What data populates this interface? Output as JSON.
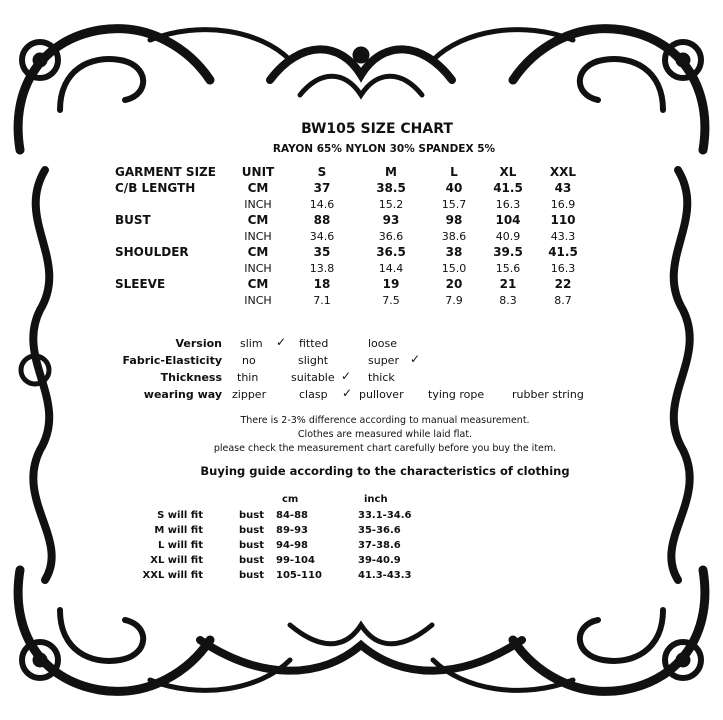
{
  "title": "BW105 SIZE CHART",
  "material": "RAYON 65% NYLON 30% SPANDEX 5%",
  "table": {
    "header": {
      "label": "GARMENT SIZE",
      "unit": "UNIT",
      "sizes": [
        "S",
        "M",
        "L",
        "XL",
        "XXL"
      ]
    },
    "rows": [
      {
        "label": "C/B LENGTH",
        "cm_unit": "CM",
        "cm": [
          "37",
          "38.5",
          "40",
          "41.5",
          "43"
        ],
        "inch_unit": "INCH",
        "inch": [
          "14.6",
          "15.2",
          "15.7",
          "16.3",
          "16.9"
        ]
      },
      {
        "label": "BUST",
        "cm_unit": "CM",
        "cm": [
          "88",
          "93",
          "98",
          "104",
          "110"
        ],
        "inch_unit": "INCH",
        "inch": [
          "34.6",
          "36.6",
          "38.6",
          "40.9",
          "43.3"
        ]
      },
      {
        "label": "SHOULDER",
        "cm_unit": "CM",
        "cm": [
          "35",
          "36.5",
          "38",
          "39.5",
          "41.5"
        ],
        "inch_unit": "INCH",
        "inch": [
          "13.8",
          "14.4",
          "15.0",
          "15.6",
          "16.3"
        ]
      },
      {
        "label": "SLEEVE",
        "cm_unit": "CM",
        "cm": [
          "18",
          "19",
          "20",
          "21",
          "22"
        ],
        "inch_unit": "INCH",
        "inch": [
          "7.1",
          "7.5",
          "7.9",
          "8.3",
          "8.7"
        ]
      }
    ]
  },
  "attributes": [
    {
      "label": "Version",
      "options": [
        "slim",
        "fitted",
        "loose"
      ],
      "selected": "slim"
    },
    {
      "label": "Fabric-Elasticity",
      "options": [
        "no",
        "slight",
        "super"
      ],
      "selected": "super"
    },
    {
      "label": "Thickness",
      "options": [
        "thin",
        "suitable",
        "thick"
      ],
      "selected": "suitable"
    },
    {
      "label": "wearing way",
      "options": [
        "zipper",
        "clasp",
        "pullover",
        "tying rope",
        "rubber string"
      ],
      "selected": "clasp"
    }
  ],
  "check_mark": "✓",
  "notes": [
    "There is 2-3% difference according to manual measurement.",
    "Clothes are measured while laid flat.",
    "please check the measurement chart carefully before you buy the item."
  ],
  "guide": {
    "title": "Buying guide according to the characteristics of clothing",
    "col_cm": "cm",
    "col_inch": "inch",
    "rows": [
      {
        "label": "S will  fit",
        "part": "bust",
        "cm": "84-88",
        "inch": "33.1-34.6"
      },
      {
        "label": "M will fit",
        "part": "bust",
        "cm": "89-93",
        "inch": "35-36.6"
      },
      {
        "label": "L will fit",
        "part": "bust",
        "cm": "94-98",
        "inch": "37-38.6"
      },
      {
        "label": "XL will fit",
        "part": "bust",
        "cm": "99-104",
        "inch": "39-40.9"
      },
      {
        "label": "XXL will fit",
        "part": "bust",
        "cm": "105-110",
        "inch": "41.3-43.3"
      }
    ]
  }
}
